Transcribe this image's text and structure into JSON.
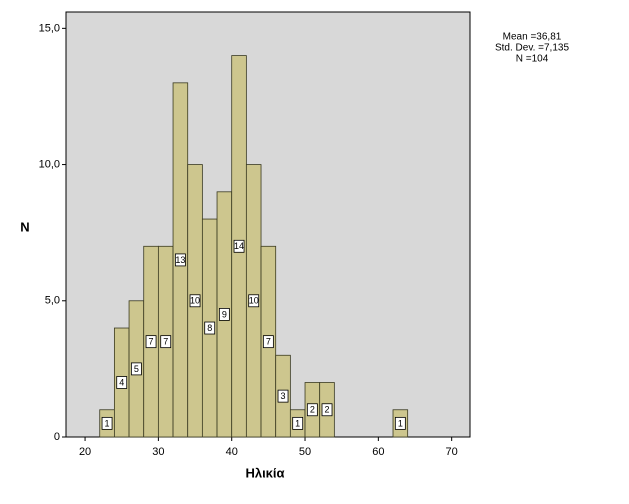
{
  "chart_data": {
    "type": "histogram",
    "x_label": "Ηλικία",
    "y_label": "N",
    "bins": [
      22,
      24,
      26,
      28,
      30,
      32,
      34,
      36,
      38,
      40,
      42,
      44,
      46,
      48,
      50,
      52,
      54,
      56,
      58,
      60,
      62,
      64
    ],
    "counts": [
      1,
      4,
      5,
      7,
      7,
      13,
      10,
      8,
      9,
      14,
      10,
      7,
      3,
      1,
      2,
      2,
      0,
      0,
      0,
      0,
      1
    ],
    "color": "#cdc68e",
    "edge_color": "#3a3a20",
    "background": "#d8d8d8",
    "xlim": [
      17.4,
      72.5
    ],
    "xticks": [
      20,
      30,
      40,
      50,
      60,
      70
    ],
    "ylim": [
      0,
      15.6
    ],
    "yticks": [
      {
        "value": 0,
        "label": "0"
      },
      {
        "value": 5,
        "label": "5,0"
      },
      {
        "value": 10,
        "label": "10,0"
      },
      {
        "value": 15,
        "label": "15,0"
      }
    ],
    "annotations": [
      "Mean =36,81",
      "Std. Dev. =7,135",
      "N =104"
    ]
  }
}
